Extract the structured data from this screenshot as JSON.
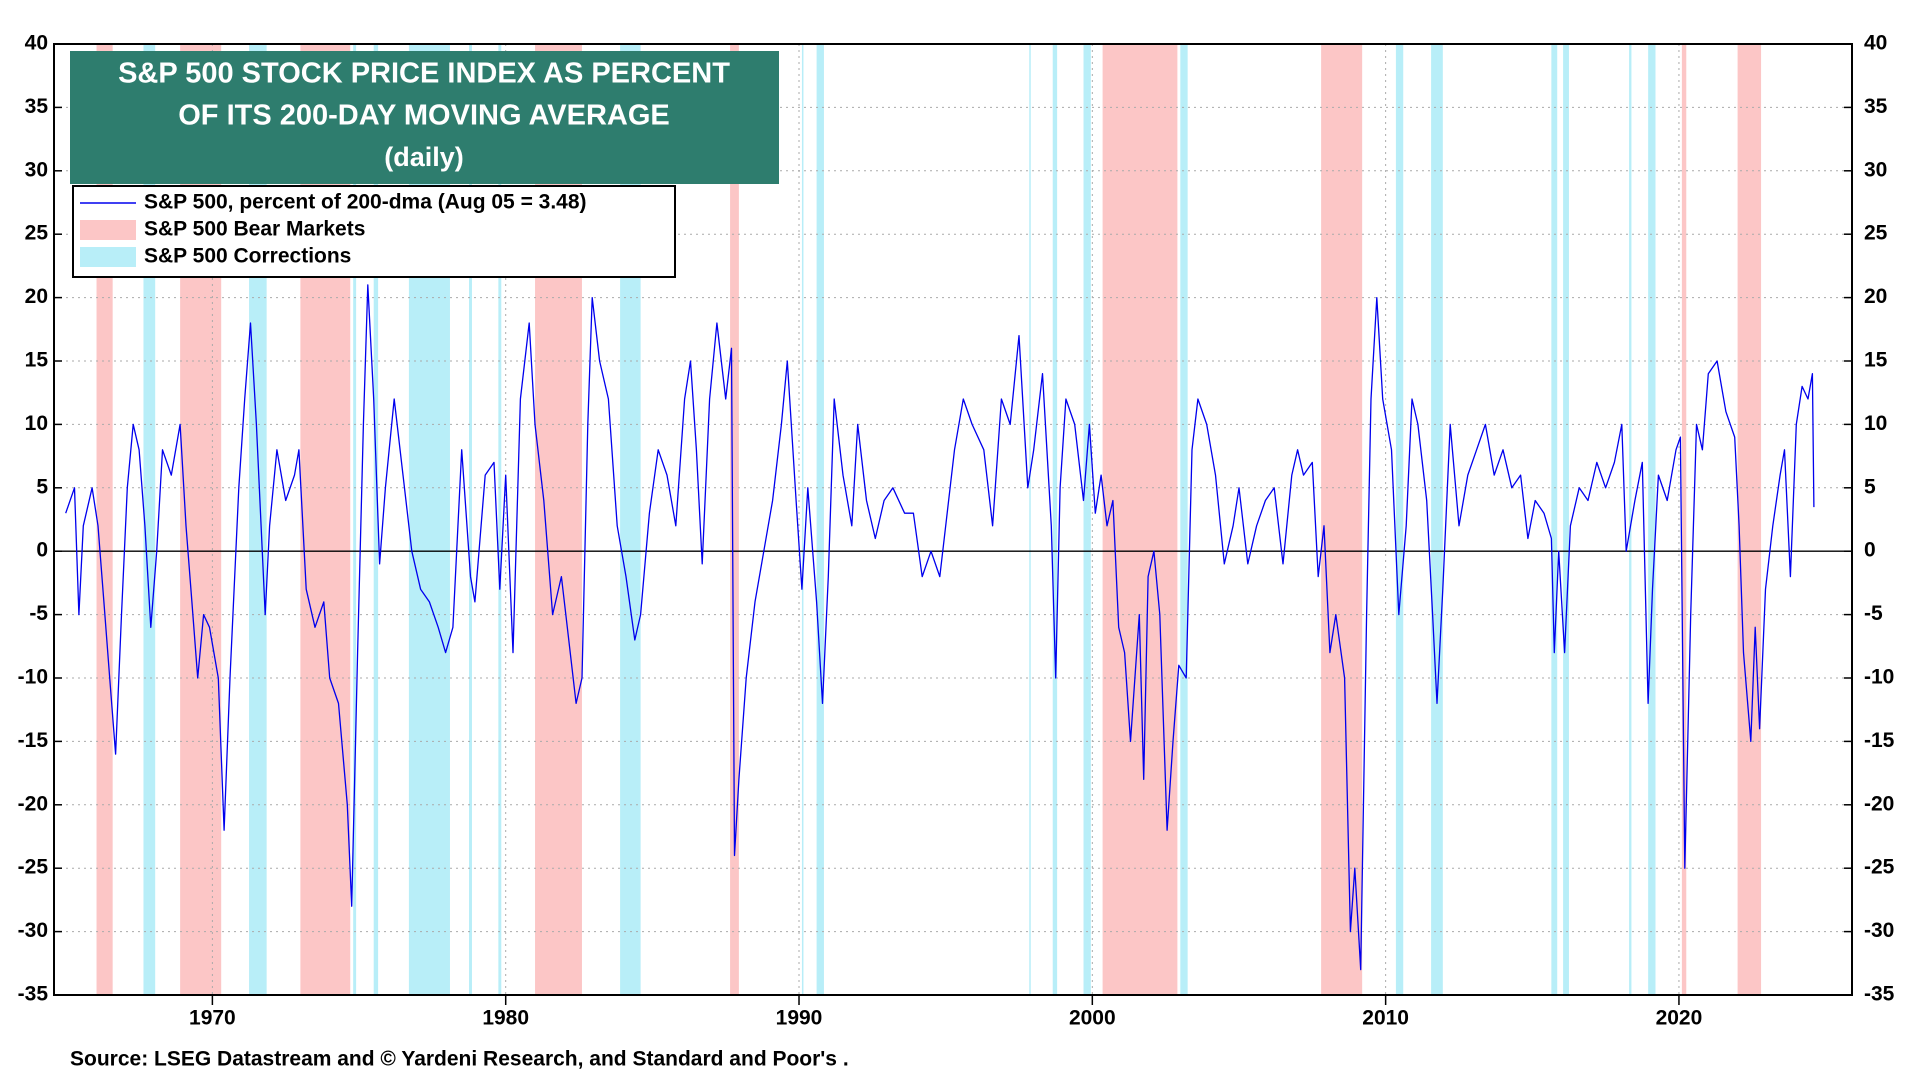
{
  "chart_data": {
    "type": "line",
    "title": [
      "S&P 500 STOCK PRICE INDEX AS PERCENT",
      "OF ITS 200-DAY MOVING AVERAGE"
    ],
    "subtitle": "(daily)",
    "source": "Source: LSEG Datastream and © Yardeni Research, and Standard and Poor's .",
    "legend": "upper left",
    "grid": true,
    "xlim": [
      1964.6,
      2025.9
    ],
    "xticks": [
      1970,
      1980,
      1990,
      2000,
      2010,
      2020
    ],
    "ylim": [
      -35,
      40
    ],
    "yticks": [
      -35,
      -30,
      -25,
      -20,
      -15,
      -10,
      -5,
      0,
      5,
      10,
      15,
      20,
      25,
      30,
      35,
      40
    ],
    "series": [
      {
        "name": "S&P 500, percent of 200-dma (Aug 05 = 3.48)",
        "color": "#0000ee",
        "x": [
          1965.0,
          1965.3,
          1965.45,
          1965.6,
          1965.9,
          1966.1,
          1966.3,
          1966.5,
          1966.7,
          1966.9,
          1967.1,
          1967.3,
          1967.5,
          1967.7,
          1967.9,
          1968.1,
          1968.3,
          1968.6,
          1968.9,
          1969.1,
          1969.3,
          1969.5,
          1969.7,
          1969.9,
          1970.2,
          1970.4,
          1970.6,
          1970.9,
          1971.1,
          1971.3,
          1971.5,
          1971.8,
          1971.95,
          1972.2,
          1972.5,
          1972.8,
          1972.95,
          1973.2,
          1973.5,
          1973.8,
          1974.0,
          1974.3,
          1974.6,
          1974.75,
          1974.95,
          1975.15,
          1975.3,
          1975.5,
          1975.7,
          1975.9,
          1976.2,
          1976.5,
          1976.8,
          1977.1,
          1977.4,
          1977.7,
          1977.95,
          1978.2,
          1978.5,
          1978.8,
          1978.95,
          1979.3,
          1979.6,
          1979.8,
          1980.0,
          1980.25,
          1980.5,
          1980.8,
          1981.0,
          1981.3,
          1981.6,
          1981.9,
          1982.1,
          1982.4,
          1982.6,
          1982.8,
          1982.95,
          1983.2,
          1983.5,
          1983.8,
          1984.1,
          1984.4,
          1984.6,
          1984.9,
          1985.2,
          1985.5,
          1985.8,
          1986.1,
          1986.3,
          1986.5,
          1986.7,
          1986.95,
          1987.2,
          1987.5,
          1987.7,
          1987.8,
          1987.95,
          1988.2,
          1988.5,
          1988.8,
          1989.1,
          1989.4,
          1989.6,
          1989.9,
          1990.1,
          1990.3,
          1990.6,
          1990.8,
          1991.0,
          1991.2,
          1991.5,
          1991.8,
          1992.0,
          1992.3,
          1992.6,
          1992.9,
          1993.2,
          1993.6,
          1993.9,
          1994.2,
          1994.5,
          1994.8,
          1995.0,
          1995.3,
          1995.6,
          1995.9,
          1996.3,
          1996.6,
          1996.9,
          1997.2,
          1997.5,
          1997.8,
          1998.0,
          1998.3,
          1998.6,
          1998.75,
          1998.9,
          1999.1,
          1999.4,
          1999.7,
          1999.9,
          2000.1,
          2000.3,
          2000.5,
          2000.7,
          2000.9,
          2001.1,
          2001.3,
          2001.6,
          2001.75,
          2001.9,
          2002.1,
          2002.3,
          2002.55,
          2002.75,
          2002.95,
          2003.2,
          2003.4,
          2003.6,
          2003.9,
          2004.2,
          2004.5,
          2004.8,
          2005.0,
          2005.3,
          2005.6,
          2005.9,
          2006.2,
          2006.5,
          2006.8,
          2007.0,
          2007.2,
          2007.5,
          2007.7,
          2007.9,
          2008.1,
          2008.3,
          2008.6,
          2008.8,
          2008.95,
          2009.15,
          2009.35,
          2009.5,
          2009.7,
          2009.9,
          2010.2,
          2010.45,
          2010.7,
          2010.9,
          2011.1,
          2011.4,
          2011.6,
          2011.75,
          2011.95,
          2012.2,
          2012.5,
          2012.8,
          2013.1,
          2013.4,
          2013.7,
          2014.0,
          2014.3,
          2014.6,
          2014.85,
          2015.1,
          2015.4,
          2015.65,
          2015.75,
          2015.9,
          2016.1,
          2016.3,
          2016.6,
          2016.9,
          2017.2,
          2017.5,
          2017.8,
          2018.05,
          2018.2,
          2018.5,
          2018.75,
          2018.95,
          2019.1,
          2019.3,
          2019.6,
          2019.9,
          2020.05,
          2020.2,
          2020.4,
          2020.6,
          2020.8,
          2021.0,
          2021.3,
          2021.6,
          2021.9,
          2022.05,
          2022.2,
          2022.45,
          2022.6,
          2022.75,
          2022.95,
          2023.2,
          2023.45,
          2023.6,
          2023.8,
          2024.0,
          2024.2,
          2024.4,
          2024.55,
          2024.6
        ],
        "values": [
          3,
          5,
          -5,
          2,
          5,
          2,
          -4,
          -10,
          -16,
          -5,
          5,
          10,
          8,
          2,
          -6,
          0,
          8,
          6,
          10,
          2,
          -4,
          -10,
          -5,
          -6,
          -10,
          -22,
          -10,
          5,
          12,
          18,
          10,
          -5,
          2,
          8,
          4,
          6,
          8,
          -3,
          -6,
          -4,
          -10,
          -12,
          -20,
          -28,
          -8,
          10,
          21,
          12,
          -1,
          5,
          12,
          6,
          0,
          -3,
          -4,
          -6,
          -8,
          -6,
          8,
          -2,
          -4,
          6,
          7,
          -3,
          6,
          -8,
          12,
          18,
          10,
          4,
          -5,
          -2,
          -6,
          -12,
          -10,
          10,
          20,
          15,
          12,
          2,
          -2,
          -7,
          -5,
          3,
          8,
          6,
          2,
          12,
          15,
          8,
          -1,
          12,
          18,
          12,
          16,
          -24,
          -18,
          -10,
          -4,
          0,
          4,
          10,
          15,
          4,
          -3,
          5,
          -4,
          -12,
          -2,
          12,
          6,
          2,
          10,
          4,
          1,
          4,
          5,
          3,
          3,
          -2,
          0,
          -2,
          2,
          8,
          12,
          10,
          8,
          2,
          12,
          10,
          17,
          5,
          8,
          14,
          2,
          -10,
          5,
          12,
          10,
          4,
          10,
          3,
          6,
          2,
          4,
          -6,
          -8,
          -15,
          -5,
          -18,
          -2,
          0,
          -5,
          -22,
          -15,
          -9,
          -10,
          8,
          12,
          10,
          6,
          -1,
          2,
          5,
          -1,
          2,
          4,
          5,
          -1,
          6,
          8,
          6,
          7,
          -2,
          2,
          -8,
          -5,
          -10,
          -30,
          -25,
          -33,
          -5,
          12,
          20,
          12,
          8,
          -5,
          2,
          12,
          10,
          4,
          -5,
          -12,
          -3,
          10,
          2,
          6,
          8,
          10,
          6,
          8,
          5,
          6,
          1,
          4,
          3,
          1,
          -8,
          0,
          -8,
          2,
          5,
          4,
          7,
          5,
          7,
          10,
          0,
          4,
          7,
          -12,
          -3,
          6,
          4,
          8,
          9,
          -25,
          -5,
          10,
          8,
          14,
          15,
          11,
          9,
          2,
          -8,
          -15,
          -6,
          -14,
          -3,
          2,
          6,
          8,
          -2,
          10,
          13,
          12,
          14,
          3.48
        ]
      }
    ],
    "bands": [
      {
        "name": "S&P 500 Bear Markets",
        "color": "#fcc6c6",
        "spans": [
          [
            1966.05,
            1966.6
          ],
          [
            1968.9,
            1970.3
          ],
          [
            1973.0,
            1974.7
          ],
          [
            1981.0,
            1982.6
          ],
          [
            1987.65,
            1987.95
          ],
          [
            2000.35,
            2002.9
          ],
          [
            2007.8,
            2009.2
          ],
          [
            2020.1,
            2020.25
          ],
          [
            2022.0,
            2022.8
          ]
        ]
      },
      {
        "name": "S&P 500 Corrections",
        "color": "#b8eef8",
        "spans": [
          [
            1967.65,
            1968.05
          ],
          [
            1971.25,
            1971.85
          ],
          [
            1974.8,
            1974.9
          ],
          [
            1975.5,
            1975.65
          ],
          [
            1976.7,
            1978.1
          ],
          [
            1978.75,
            1978.85
          ],
          [
            1979.75,
            1979.85
          ],
          [
            1983.9,
            1984.6
          ],
          [
            1990.1,
            1990.15
          ],
          [
            1990.6,
            1990.85
          ],
          [
            1997.85,
            1997.9
          ],
          [
            1998.65,
            1998.8
          ],
          [
            1999.7,
            1999.95
          ],
          [
            2003.0,
            2003.25
          ],
          [
            2010.35,
            2010.6
          ],
          [
            2011.55,
            2011.95
          ],
          [
            2015.65,
            2015.85
          ],
          [
            2016.05,
            2016.25
          ],
          [
            2018.3,
            2018.38
          ],
          [
            2018.95,
            2019.2
          ]
        ]
      }
    ]
  }
}
